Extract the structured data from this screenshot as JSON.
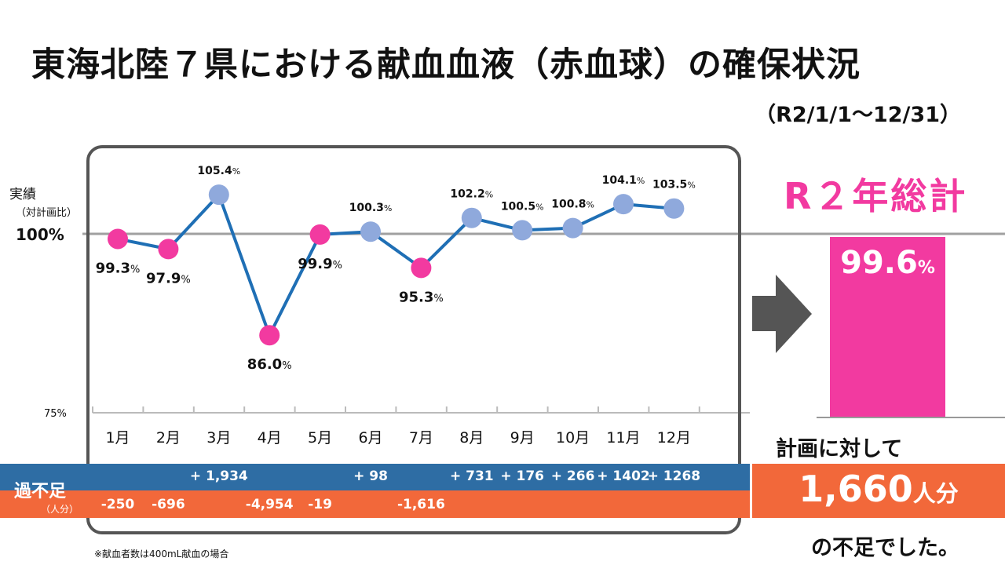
{
  "title": "東海北陸７県における献血血液（赤血球）の確保状況",
  "period": "（R2/1/1～12/31）",
  "chart_data": {
    "type": "line",
    "categories": [
      "1月",
      "2月",
      "3月",
      "4月",
      "5月",
      "6月",
      "7月",
      "8月",
      "9月",
      "10月",
      "11月",
      "12月"
    ],
    "series": [
      {
        "values": [
          99.3,
          97.9,
          105.4,
          86.0,
          99.9,
          100.3,
          95.3,
          102.2,
          100.5,
          100.8,
          104.1,
          103.5
        ]
      }
    ],
    "value_labels": [
      "99.3",
      "97.9",
      "105.4",
      "86.0",
      "99.9",
      "100.3",
      "95.3",
      "102.2",
      "100.5",
      "100.8",
      "104.1",
      "103.5"
    ],
    "value_unit": "%",
    "ylabel": "実績",
    "ylabel_sub": "（対計画比）",
    "y_ticks": [
      "100%",
      "75%"
    ],
    "reference_line": 100,
    "ylim": [
      75,
      108
    ],
    "colors": {
      "line": "#1f6fb5",
      "below_target": "#f23aa0",
      "above_target": "#8fa9dc",
      "reference": "#a0a0a0"
    }
  },
  "table": {
    "label": "過不足",
    "unit": "（人分）",
    "surplus": [
      "",
      "",
      "+ 1,934",
      "",
      "",
      "+ 98",
      "",
      "+ 731",
      "+ 176",
      "+ 266",
      "+ 1402",
      "+ 1268"
    ],
    "shortage": [
      "-250",
      "-696",
      "",
      "-4,954",
      "-19",
      "",
      "-1,616",
      "",
      "",
      "",
      "",
      ""
    ],
    "colors": {
      "surplus": "#2e6da4",
      "shortage": "#f2683a"
    }
  },
  "note": "※献血者数は400mL献血の場合",
  "total": {
    "title": "R２年総計",
    "value": "99.6",
    "unit": "%",
    "color": "#f23aa0"
  },
  "summary": {
    "lead": "計画に対して",
    "number": "1,660",
    "unit": "人分",
    "tail": "の不足でした。"
  }
}
